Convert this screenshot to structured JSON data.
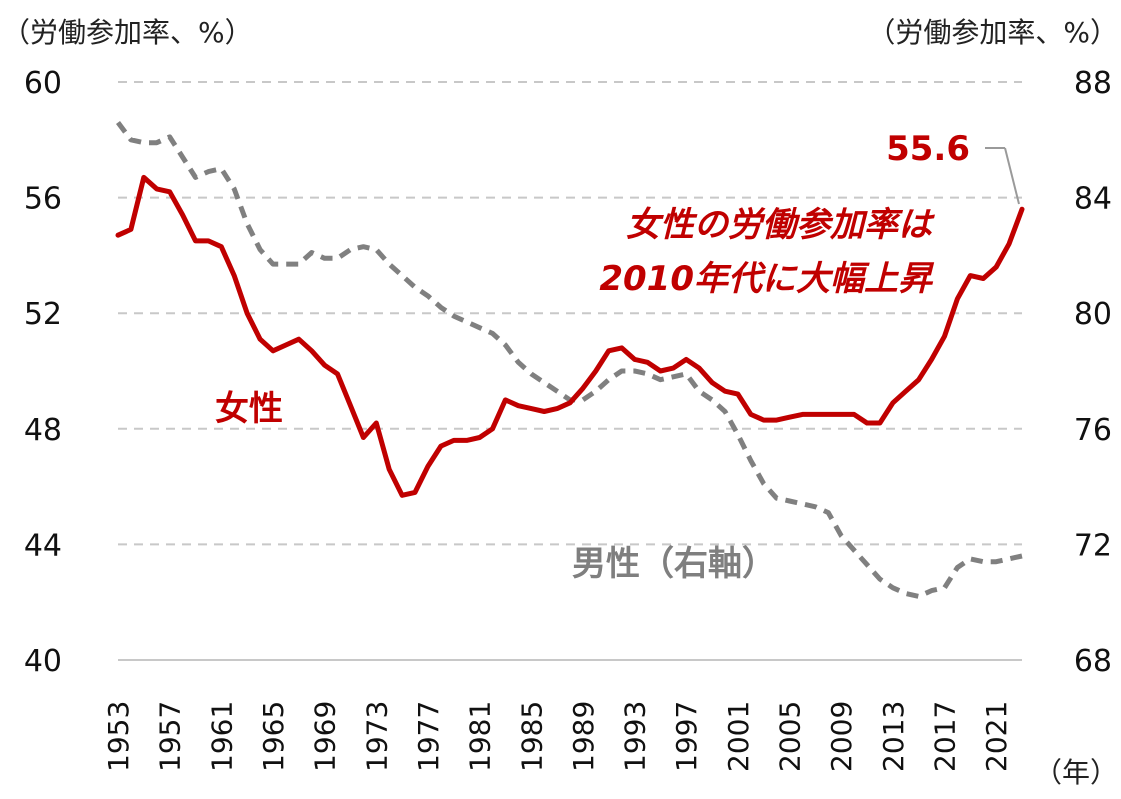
{
  "chart_data": {
    "type": "line",
    "left_axis_label": "（労働参加率、%）",
    "right_axis_label": "（労働参加率、%）",
    "x_unit_label": "（年）",
    "y_left_ticks": [
      60,
      56,
      52,
      48,
      44,
      40
    ],
    "y_right_ticks": [
      88,
      84,
      80,
      76,
      72,
      68
    ],
    "ylim_left": [
      40,
      60
    ],
    "ylim_right": [
      68,
      88
    ],
    "x_tick_labels": [
      "1953",
      "1957",
      "1961",
      "1965",
      "1969",
      "1973",
      "1977",
      "1981",
      "1985",
      "1989",
      "1993",
      "1997",
      "2001",
      "2005",
      "2009",
      "2013",
      "2017",
      "2021"
    ],
    "xlim": [
      1953,
      2023
    ],
    "grid": "horizontal dashed",
    "series": [
      {
        "name": "女性",
        "axis": "left",
        "color": "#c00000",
        "style": "solid",
        "x": [
          1953,
          1954,
          1955,
          1956,
          1957,
          1958,
          1959,
          1960,
          1961,
          1962,
          1963,
          1964,
          1965,
          1966,
          1967,
          1968,
          1969,
          1970,
          1971,
          1972,
          1973,
          1974,
          1975,
          1976,
          1977,
          1978,
          1979,
          1980,
          1981,
          1982,
          1983,
          1984,
          1985,
          1986,
          1987,
          1988,
          1989,
          1990,
          1991,
          1992,
          1993,
          1994,
          1995,
          1996,
          1997,
          1998,
          1999,
          2000,
          2001,
          2002,
          2003,
          2004,
          2005,
          2006,
          2007,
          2008,
          2009,
          2010,
          2011,
          2012,
          2013,
          2014,
          2015,
          2016,
          2017,
          2018,
          2019,
          2020,
          2021,
          2022,
          2023
        ],
        "values": [
          54.7,
          54.9,
          56.7,
          56.3,
          56.2,
          55.4,
          54.5,
          54.5,
          54.3,
          53.3,
          52.0,
          51.1,
          50.7,
          50.9,
          51.1,
          50.7,
          50.2,
          49.9,
          48.8,
          47.7,
          48.2,
          46.6,
          45.7,
          45.8,
          46.7,
          47.4,
          47.6,
          47.6,
          47.7,
          48.0,
          49.0,
          48.8,
          48.7,
          48.6,
          48.7,
          48.9,
          49.4,
          50.0,
          50.7,
          50.8,
          50.4,
          50.3,
          50.0,
          50.1,
          50.4,
          50.1,
          49.6,
          49.3,
          49.2,
          48.5,
          48.3,
          48.3,
          48.4,
          48.5,
          48.5,
          48.5,
          48.5,
          48.5,
          48.2,
          48.2,
          48.9,
          49.3,
          49.7,
          50.4,
          51.2,
          52.5,
          53.3,
          53.2,
          53.6,
          54.4,
          55.6
        ]
      },
      {
        "name": "男性（右軸）",
        "axis": "right",
        "color": "#808080",
        "style": "dashed",
        "x": [
          1953,
          1954,
          1955,
          1956,
          1957,
          1958,
          1959,
          1960,
          1961,
          1962,
          1963,
          1964,
          1965,
          1966,
          1967,
          1968,
          1969,
          1970,
          1971,
          1972,
          1973,
          1974,
          1975,
          1976,
          1977,
          1978,
          1979,
          1980,
          1981,
          1982,
          1983,
          1984,
          1985,
          1986,
          1987,
          1988,
          1989,
          1990,
          1991,
          1992,
          1993,
          1994,
          1995,
          1996,
          1997,
          1998,
          1999,
          2000,
          2001,
          2002,
          2003,
          2004,
          2005,
          2006,
          2007,
          2008,
          2009,
          2010,
          2011,
          2012,
          2013,
          2014,
          2015,
          2016,
          2017,
          2018,
          2019,
          2020,
          2021,
          2022,
          2023
        ],
        "values": [
          86.6,
          86.0,
          85.9,
          85.9,
          86.1,
          85.4,
          84.7,
          84.9,
          85.0,
          84.3,
          83.1,
          82.2,
          81.7,
          81.7,
          81.7,
          82.1,
          81.9,
          81.9,
          82.2,
          82.3,
          82.2,
          81.7,
          81.3,
          80.9,
          80.6,
          80.2,
          79.9,
          79.7,
          79.5,
          79.3,
          78.9,
          78.3,
          77.9,
          77.6,
          77.3,
          77.0,
          77.0,
          77.3,
          77.7,
          78.0,
          78.0,
          77.9,
          77.7,
          77.8,
          77.9,
          77.3,
          77.0,
          76.6,
          75.8,
          74.9,
          74.1,
          73.6,
          73.5,
          73.4,
          73.3,
          73.1,
          72.3,
          71.8,
          71.3,
          70.8,
          70.5,
          70.3,
          70.2,
          70.4,
          70.5,
          71.2,
          71.5,
          71.4,
          71.4,
          71.5,
          71.6
        ]
      }
    ],
    "annotations": [
      {
        "text": "55.6",
        "color": "#c00000"
      },
      {
        "text": "女性の労働参加率は",
        "color": "#c00000"
      },
      {
        "text": "2010年代に大幅上昇",
        "color": "#c00000"
      },
      {
        "text": "女性",
        "color": "#c00000"
      },
      {
        "text": "男性（右軸）",
        "color": "#7f7f7f"
      }
    ]
  }
}
